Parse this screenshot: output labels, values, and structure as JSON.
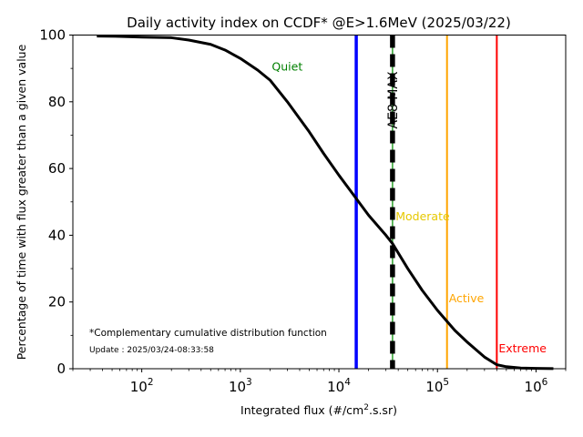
{
  "chart_data": {
    "type": "line",
    "title": "Daily activity index on CCDF* @E>1.6MeV (2025/03/22)",
    "xlabel_base": "Integrated flux (#/cm",
    "xlabel_sup": "2",
    "xlabel_tail": ".s.sr)",
    "ylabel": "Percentage of time with flux greater than a given value",
    "xscale": "log",
    "xlim": [
      20,
      2000000
    ],
    "ylim": [
      0,
      100
    ],
    "x_ticks": [
      {
        "value": 100,
        "base": "10",
        "exp": "2"
      },
      {
        "value": 1000,
        "base": "10",
        "exp": "3"
      },
      {
        "value": 10000,
        "base": "10",
        "exp": "4"
      },
      {
        "value": 100000,
        "base": "10",
        "exp": "5"
      },
      {
        "value": 1000000,
        "base": "10",
        "exp": "6"
      }
    ],
    "y_ticks": [
      "0",
      "20",
      "40",
      "60",
      "80",
      "100"
    ],
    "series": [
      {
        "color": "#000000",
        "x": [
          35,
          60,
          100,
          200,
          300,
          500,
          700,
          1000,
          1500,
          2000,
          3000,
          5000,
          7000,
          10000,
          15000,
          20000,
          30000,
          35000,
          50000,
          70000,
          100000,
          150000,
          200000,
          300000,
          400000,
          500000,
          700000,
          1000000,
          1500000
        ],
        "y": [
          99.7,
          99.6,
          99.4,
          99.2,
          98.5,
          97.2,
          95.5,
          93.0,
          89.5,
          86.5,
          80.0,
          71.0,
          64.5,
          58.0,
          51.0,
          46.0,
          40.0,
          37.5,
          30.0,
          23.5,
          17.5,
          11.5,
          8.0,
          3.5,
          1.2,
          0.6,
          0.2,
          0.1,
          0.05
        ]
      }
    ],
    "vertical_lines": [
      {
        "name": "Quiet",
        "x": 15000,
        "color": "#0000ff",
        "label_x": 2000,
        "label_y": 90.5,
        "label_color": "#008000",
        "width": 3.5
      },
      {
        "name": "Moderate",
        "x": 35000,
        "color": "#000000",
        "dash": true,
        "inner_color": "#2ca02c",
        "label_x": 36000,
        "label_y": 45.5,
        "label_color": "#e6c800",
        "width": 5.5
      },
      {
        "name": "Active",
        "x": 125000,
        "color": "#ffa500",
        "label_x": 125000,
        "label_y": 21,
        "label_color": "#ffa500",
        "width": 2
      },
      {
        "name": "Extreme",
        "x": 400000,
        "color": "#ff0000",
        "label_x": 400000,
        "label_y": 6,
        "label_color": "#ff0000",
        "width": 2
      }
    ],
    "max_label": "AE8 MAX",
    "grid": false,
    "legend": "none"
  },
  "notes": {
    "ccdf": "*Complementary cumulative distribution function",
    "update": "Update : 2025/03/24-08:33:58"
  }
}
